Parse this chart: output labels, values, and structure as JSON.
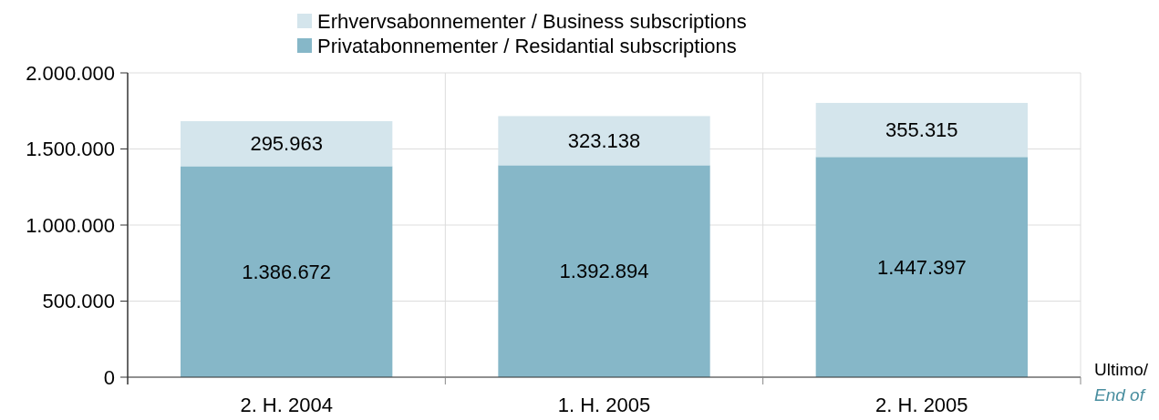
{
  "chart_data": {
    "type": "bar",
    "stacked": true,
    "categories": [
      "2. H. 2004",
      "1. H. 2005",
      "2. H. 2005"
    ],
    "series": [
      {
        "name": "Privatabonnementer / Residantial subscriptions",
        "color": "#86b7c8",
        "values": [
          1386672,
          1392894,
          1447397
        ],
        "value_labels": [
          "1.386.672",
          "1.392.894",
          "1.447.397"
        ]
      },
      {
        "name": "Erhvervsabonnementer / Business subscriptions",
        "color": "#d4e5ec",
        "values": [
          295963,
          323138,
          355315
        ],
        "value_labels": [
          "295.963",
          "323.138",
          "355.315"
        ]
      }
    ],
    "xlabel": "Ultimo/\nEnd of",
    "ylim": [
      0,
      2000000
    ],
    "yticks": [
      {
        "value": 0,
        "label": "0"
      },
      {
        "value": 500000,
        "label": "500.000"
      },
      {
        "value": 1000000,
        "label": "1.000.000"
      },
      {
        "value": 1500000,
        "label": "1.500.000"
      },
      {
        "value": 2000000,
        "label": "2.000.000"
      }
    ],
    "grid": true,
    "legend": "top"
  }
}
